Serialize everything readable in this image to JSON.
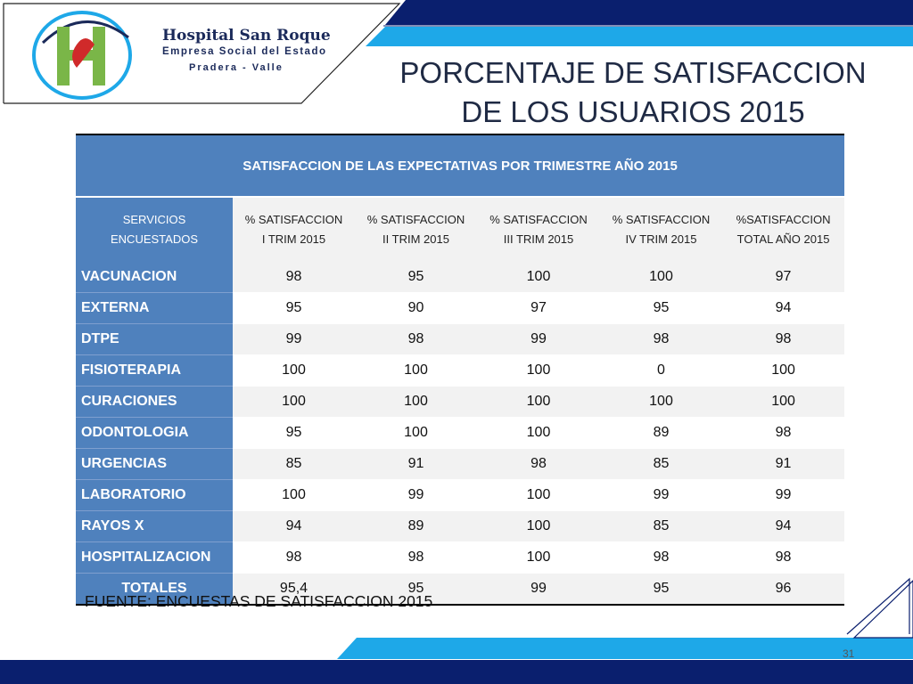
{
  "logo": {
    "name": "Hospital San Roque",
    "subtitle": "Empresa Social del Estado",
    "location": "Pradera - Valle"
  },
  "title": {
    "line1": "PORCENTAJE DE SATISFACCION",
    "line2": "DE LOS USUARIOS 2015"
  },
  "table": {
    "caption": "SATISFACCION DE LAS EXPECTATIVAS POR TRIMESTRE AÑO 2015",
    "headers": [
      [
        "SERVICIOS",
        "ENCUESTADOS"
      ],
      [
        "% SATISFACCION",
        "I TRIM 2015"
      ],
      [
        "% SATISFACCION",
        "II TRIM 2015"
      ],
      [
        "% SATISFACCION",
        "III TRIM 2015"
      ],
      [
        "% SATISFACCION",
        "IV TRIM 2015"
      ],
      [
        "%SATISFACCION",
        "TOTAL AÑO 2015"
      ]
    ],
    "rows": [
      {
        "service": "VACUNACION",
        "values": [
          "98",
          "95",
          "100",
          "100",
          "97"
        ]
      },
      {
        "service": "EXTERNA",
        "values": [
          "95",
          "90",
          "97",
          "95",
          "94"
        ]
      },
      {
        "service": "DTPE",
        "values": [
          "99",
          "98",
          "99",
          "98",
          "98"
        ]
      },
      {
        "service": "FISIOTERAPIA",
        "values": [
          "100",
          "100",
          "100",
          "0",
          "100"
        ]
      },
      {
        "service": "CURACIONES",
        "values": [
          "100",
          "100",
          "100",
          "100",
          "100"
        ]
      },
      {
        "service": "ODONTOLOGIA",
        "values": [
          "95",
          "100",
          "100",
          "89",
          "98"
        ]
      },
      {
        "service": "URGENCIAS",
        "values": [
          "85",
          "91",
          "98",
          "85",
          "91"
        ]
      },
      {
        "service": "LABORATORIO",
        "values": [
          "100",
          "99",
          "100",
          "99",
          "99"
        ]
      },
      {
        "service": "RAYOS X",
        "values": [
          "94",
          "89",
          "100",
          "85",
          "94"
        ]
      },
      {
        "service": "HOSPITALIZACION",
        "values": [
          "98",
          "98",
          "100",
          "98",
          "98"
        ]
      }
    ],
    "totals": {
      "service": "TOTALES",
      "values": [
        "95,4",
        "95",
        "99",
        "95",
        "96"
      ]
    }
  },
  "source": "FUENTE: ENCUESTAS DE SATISFACCION 2015",
  "page_number": "31",
  "colors": {
    "navy": "#0a1f6e",
    "cyan": "#1ea8e8",
    "header_blue": "#4f81bd",
    "row_stripe": "#f2f2f2"
  }
}
